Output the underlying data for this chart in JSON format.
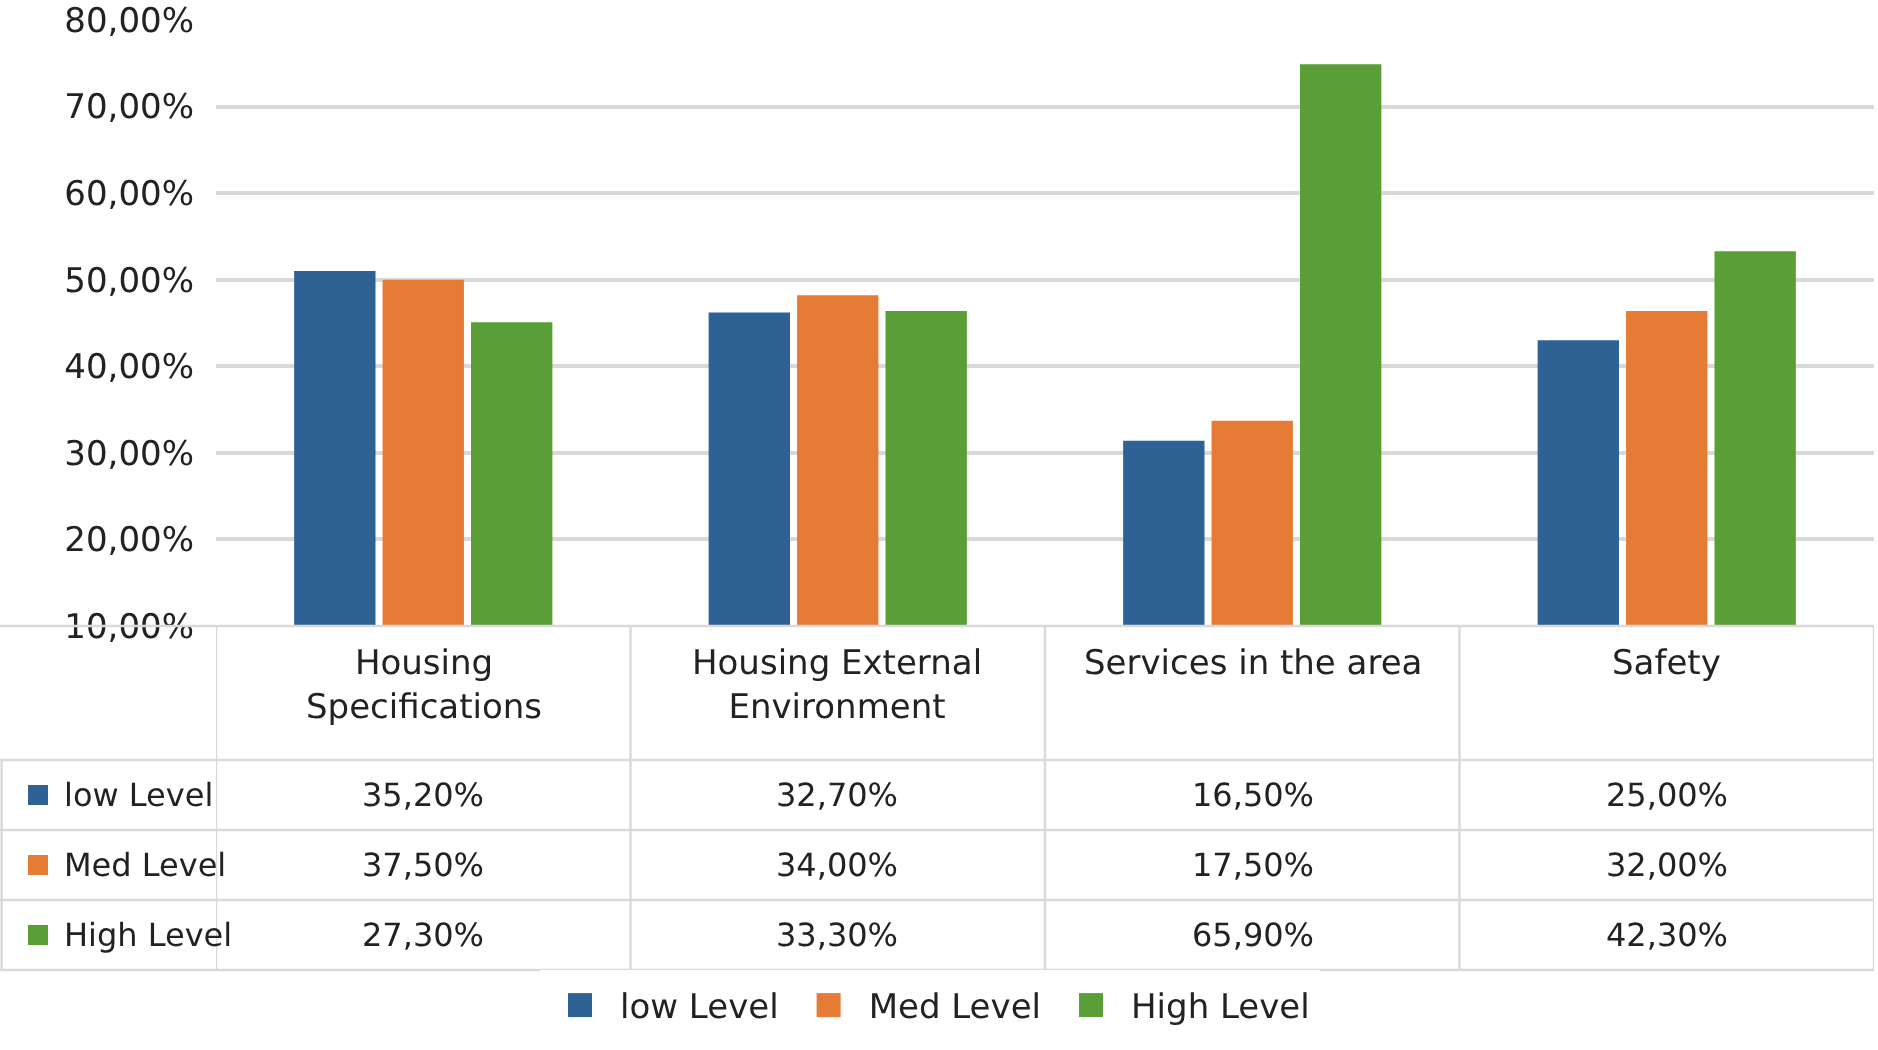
{
  "chart_data": {
    "type": "bar",
    "categories": [
      "Housing Specifications",
      "Housing External Environment",
      "Services in the area",
      "Safety"
    ],
    "series": [
      {
        "name": "low Level",
        "color": "#2e6295",
        "values": [
          51.0,
          46.2,
          31.4,
          43.0
        ]
      },
      {
        "name": "Med Level",
        "color": "#e57b35",
        "values": [
          50.0,
          48.2,
          33.7,
          46.4
        ]
      },
      {
        "name": "High Level",
        "color": "#5a9e37",
        "values": [
          45.1,
          46.4,
          74.9,
          53.3
        ]
      }
    ],
    "annotations": [
      "35,20%",
      "32,70%",
      "16,50%",
      "25,00%",
      "37,50%",
      "34,00%",
      "17,50%",
      "32,00%",
      "27,30%",
      "33,30%",
      "65,90%",
      "42,30%"
    ],
    "ylim": [
      10,
      80
    ],
    "yticks": [
      {
        "value": 10,
        "label": "10,00%"
      },
      {
        "value": 20,
        "label": "20,00%"
      },
      {
        "value": 30,
        "label": "30,00%"
      },
      {
        "value": 40,
        "label": "40,00%"
      },
      {
        "value": 50,
        "label": "50,00%"
      },
      {
        "value": 60,
        "label": "60,00%"
      },
      {
        "value": 70,
        "label": "70,00%"
      },
      {
        "value": 80,
        "label": "80,00%"
      }
    ],
    "grid": "y",
    "legend": "bottom"
  }
}
